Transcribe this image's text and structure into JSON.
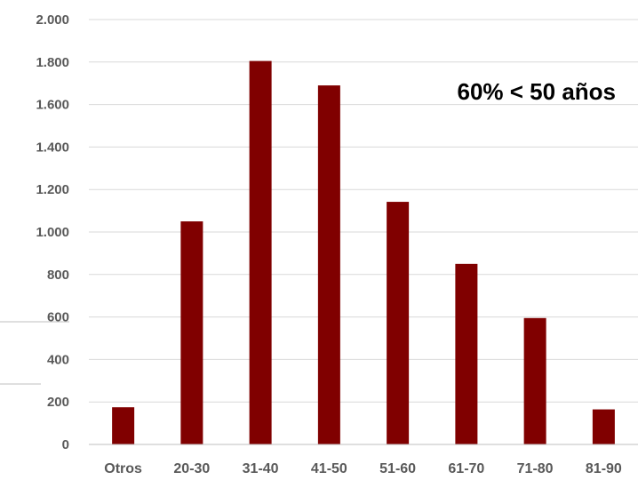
{
  "chart_data": {
    "type": "bar",
    "title": "",
    "xlabel": "",
    "ylabel": "",
    "categories": [
      "Otros",
      "20-30",
      "31-40",
      "41-50",
      "51-60",
      "61-70",
      "71-80",
      "81-90"
    ],
    "values": [
      175,
      1050,
      1805,
      1690,
      1142,
      850,
      595,
      165
    ],
    "ylim": [
      0,
      2000
    ],
    "yticks": [
      0,
      200,
      400,
      600,
      800,
      1000,
      1200,
      1400,
      1600,
      1800,
      2000
    ],
    "ytick_labels": [
      "0",
      "200",
      "400",
      "600",
      "800",
      "1.000",
      "1.200",
      "1.400",
      "1.600",
      "1.800",
      "2.000"
    ],
    "grid": true,
    "bar_color": "#800000",
    "annotation": "60% < 50 años"
  }
}
